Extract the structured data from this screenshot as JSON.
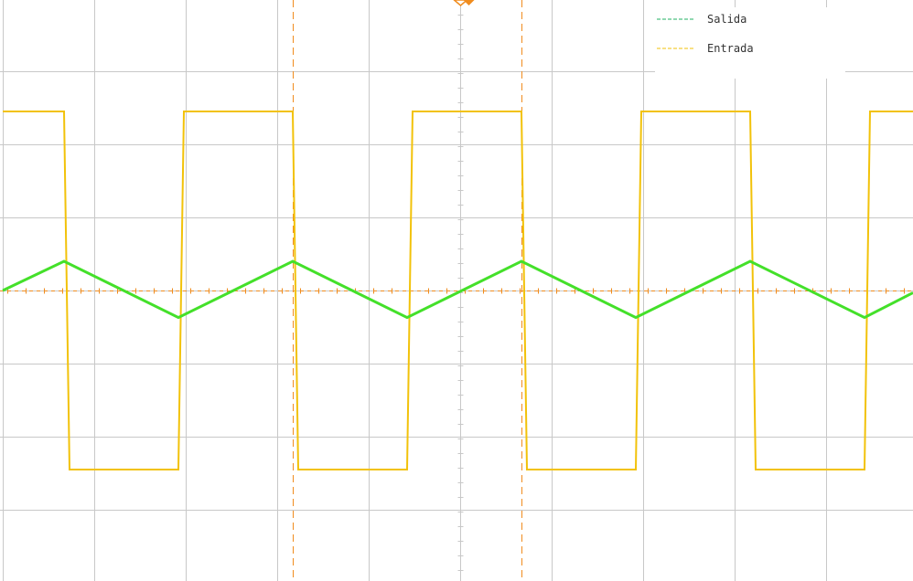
{
  "chart_data": {
    "type": "line",
    "title": "",
    "xlabel": "",
    "ylabel": "",
    "grid": true,
    "divisions": {
      "x": 10,
      "y": 8
    },
    "xlim": [
      0,
      10
    ],
    "ylim": [
      -4,
      4
    ],
    "legend_position": "top-right",
    "series": [
      {
        "name": "Salida",
        "color": "#44e02a",
        "legend_color": "#22b060",
        "x": [
          0,
          0.67,
          1.92,
          3.17,
          4.42,
          5.67,
          6.92,
          8.17,
          9.42,
          9.95
        ],
        "values": [
          0,
          0.4,
          -0.37,
          0.4,
          -0.37,
          0.4,
          -0.37,
          0.4,
          -0.37,
          -0.03
        ]
      },
      {
        "name": "Entrada",
        "color": "#f2c20a",
        "legend_color": "#f2c20a",
        "x": [
          0,
          0.67,
          0.73,
          1.92,
          1.98,
          3.17,
          3.23,
          4.42,
          4.48,
          5.67,
          5.73,
          6.92,
          6.98,
          8.17,
          8.23,
          9.42,
          9.48,
          9.95
        ],
        "values": [
          2.45,
          2.45,
          -2.45,
          -2.45,
          2.45,
          2.45,
          -2.45,
          -2.45,
          2.45,
          2.45,
          -2.45,
          -2.45,
          2.45,
          2.45,
          -2.45,
          -2.45,
          2.45,
          2.45
        ]
      }
    ],
    "cursors": {
      "x": [
        3.17,
        5.67
      ],
      "y": [
        0
      ]
    },
    "colors": {
      "grid": "#c8c8c8",
      "cursor": "#f08c1e",
      "trigger_marker": "#f08c1e"
    }
  }
}
